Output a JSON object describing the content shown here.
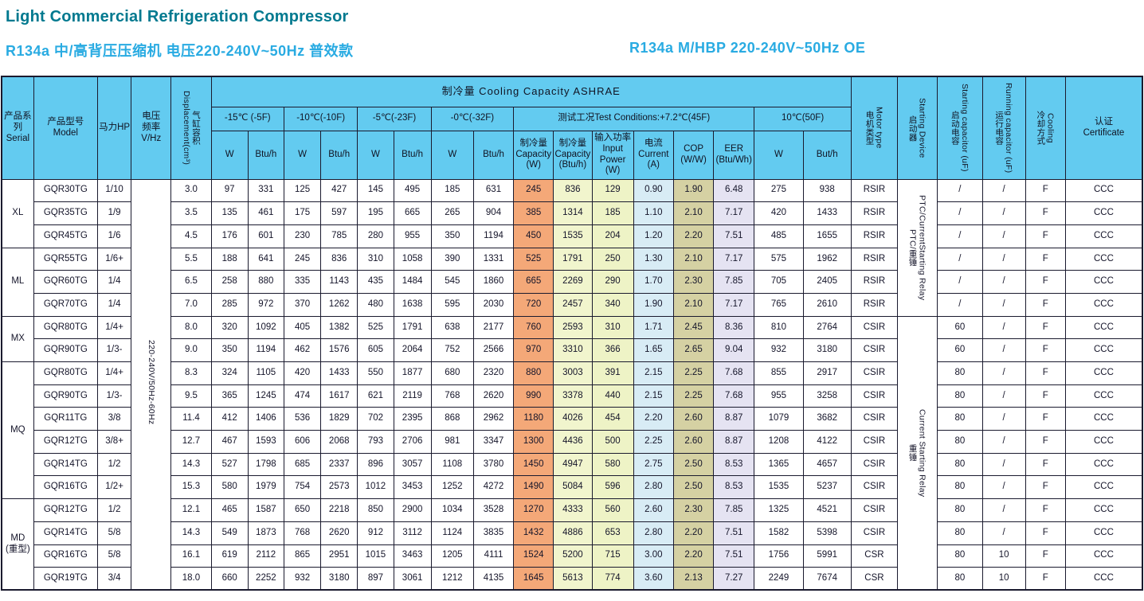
{
  "page": {
    "title": "Light Commercial Refrigeration Compressor",
    "subtitle_left": "R134a   中/高背压压缩机   电压220-240V~50Hz   普效款",
    "subtitle_right": "R134a   M/HBP   220-240V~50Hz   OE"
  },
  "colors": {
    "title": "#00798f",
    "subtitle": "#29abe2",
    "header_bg": "#63cbf0",
    "capacity_w": "#f4a878",
    "capacity_btu": "#f1f5cd",
    "input_power": "#eef3c6",
    "current": "#d8ecf5",
    "cop": "#d5d1a3",
    "eer": "#e5e3f2"
  },
  "table": {
    "header": {
      "serial": "产品系列\nSerial",
      "model": "产品型号\nModel",
      "hp": "马力HP",
      "vhz": "电压\n频率\nV/Hz",
      "displacement_en": "Displacement(cm³)",
      "displacement_zh": "气缸容积",
      "cooling_group": "制冷量   Cooling  Capacity  ASHRAE",
      "temp_cols": [
        "-15℃ (-5F)",
        "-10℃(-10F)",
        "-5℃(-23F)",
        "-0℃(-32F)",
        "测试工况Test Conditions:+7.2℃(45F)",
        "10℃(50F)"
      ],
      "sub_w": "W",
      "sub_btu": "Btu/h",
      "sub_but": "But/h",
      "test_cols": [
        "制冷量\nCapacity\n(W)",
        "制冷量\nCapacity\n(Btu/h)",
        "输入功率\nInput\nPower\n(W)",
        "电流\nCurrent\n(A)",
        "COP\n(W/W)",
        "EER\n(Btu/Wh)"
      ],
      "motor_zh": "电机类型",
      "motor_en": "Motor type",
      "start_dev_zh": "启动器",
      "start_dev_en": "Starting Device",
      "start_cap_zh": "启动电容",
      "start_cap_en": "Starting capacitor (uF)",
      "run_cap_zh": "运行电容",
      "run_cap_en": "Running capacitor (uF)",
      "cooling_zh": "冷却方式",
      "cooling_en": "Cooling",
      "cert": "认证\nCertificate"
    },
    "voltage": "220-240V/50Hz-60Hz",
    "groups": [
      {
        "name": "XL",
        "rows": 3
      },
      {
        "name": "ML",
        "rows": 3
      },
      {
        "name": "MX",
        "rows": 2
      },
      {
        "name": "MQ",
        "rows": 6
      },
      {
        "name": "MD\n(重型)",
        "rows": 4
      }
    ],
    "starting_device": [
      {
        "zh": "PTC/重锤",
        "en": "PTC/CurrentStarting Relay",
        "span": 6
      },
      {
        "zh": "重锤",
        "en": "Current Starting Relay",
        "span": 12
      }
    ],
    "rows": [
      {
        "model": "GQR30TG",
        "hp": "1/10",
        "disp": "3.0",
        "cooling": [
          "97",
          "331",
          "125",
          "427",
          "145",
          "495",
          "185",
          "631"
        ],
        "test": [
          "245",
          "836",
          "129",
          "0.90",
          "1.90",
          "6.48"
        ],
        "t50": [
          "275",
          "938"
        ],
        "motor": "RSIR",
        "start_cap": "/",
        "run_cap": "/",
        "cool": "F",
        "cert": "CCC"
      },
      {
        "model": "GQR35TG",
        "hp": "1/9",
        "disp": "3.5",
        "cooling": [
          "135",
          "461",
          "175",
          "597",
          "195",
          "665",
          "265",
          "904"
        ],
        "test": [
          "385",
          "1314",
          "185",
          "1.10",
          "2.10",
          "7.17"
        ],
        "t50": [
          "420",
          "1433"
        ],
        "motor": "RSIR",
        "start_cap": "/",
        "run_cap": "/",
        "cool": "F",
        "cert": "CCC"
      },
      {
        "model": "GQR45TG",
        "hp": "1/6",
        "disp": "4.5",
        "cooling": [
          "176",
          "601",
          "230",
          "785",
          "280",
          "955",
          "350",
          "1194"
        ],
        "test": [
          "450",
          "1535",
          "204",
          "1.20",
          "2.20",
          "7.51"
        ],
        "t50": [
          "485",
          "1655"
        ],
        "motor": "RSIR",
        "start_cap": "/",
        "run_cap": "/",
        "cool": "F",
        "cert": "CCC"
      },
      {
        "model": "GQR55TG",
        "hp": "1/6+",
        "disp": "5.5",
        "cooling": [
          "188",
          "641",
          "245",
          "836",
          "310",
          "1058",
          "390",
          "1331"
        ],
        "test": [
          "525",
          "1791",
          "250",
          "1.30",
          "2.10",
          "7.17"
        ],
        "t50": [
          "575",
          "1962"
        ],
        "motor": "RSIR",
        "start_cap": "/",
        "run_cap": "/",
        "cool": "F",
        "cert": "CCC"
      },
      {
        "model": "GQR60TG",
        "hp": "1/4",
        "disp": "6.5",
        "cooling": [
          "258",
          "880",
          "335",
          "1143",
          "435",
          "1484",
          "545",
          "1860"
        ],
        "test": [
          "665",
          "2269",
          "290",
          "1.70",
          "2.30",
          "7.85"
        ],
        "t50": [
          "705",
          "2405"
        ],
        "motor": "RSIR",
        "start_cap": "/",
        "run_cap": "/",
        "cool": "F",
        "cert": "CCC"
      },
      {
        "model": "GQR70TG",
        "hp": "1/4",
        "disp": "7.0",
        "cooling": [
          "285",
          "972",
          "370",
          "1262",
          "480",
          "1638",
          "595",
          "2030"
        ],
        "test": [
          "720",
          "2457",
          "340",
          "1.90",
          "2.10",
          "7.17"
        ],
        "t50": [
          "765",
          "2610"
        ],
        "motor": "RSIR",
        "start_cap": "/",
        "run_cap": "/",
        "cool": "F",
        "cert": "CCC"
      },
      {
        "model": "GQR80TG",
        "hp": "1/4+",
        "disp": "8.0",
        "cooling": [
          "320",
          "1092",
          "405",
          "1382",
          "525",
          "1791",
          "638",
          "2177"
        ],
        "test": [
          "760",
          "2593",
          "310",
          "1.71",
          "2.45",
          "8.36"
        ],
        "t50": [
          "810",
          "2764"
        ],
        "motor": "CSIR",
        "start_cap": "60",
        "run_cap": "/",
        "cool": "F",
        "cert": "CCC"
      },
      {
        "model": "GQR90TG",
        "hp": "1/3-",
        "disp": "9.0",
        "cooling": [
          "350",
          "1194",
          "462",
          "1576",
          "605",
          "2064",
          "752",
          "2566"
        ],
        "test": [
          "970",
          "3310",
          "366",
          "1.65",
          "2.65",
          "9.04"
        ],
        "t50": [
          "932",
          "3180"
        ],
        "motor": "CSIR",
        "start_cap": "60",
        "run_cap": "/",
        "cool": "F",
        "cert": "CCC"
      },
      {
        "model": "GQR80TG",
        "hp": "1/4+",
        "disp": "8.3",
        "cooling": [
          "324",
          "1105",
          "420",
          "1433",
          "550",
          "1877",
          "680",
          "2320"
        ],
        "test": [
          "880",
          "3003",
          "391",
          "2.15",
          "2.25",
          "7.68"
        ],
        "t50": [
          "855",
          "2917"
        ],
        "motor": "CSIR",
        "start_cap": "80",
        "run_cap": "/",
        "cool": "F",
        "cert": "CCC"
      },
      {
        "model": "GQR90TG",
        "hp": "1/3-",
        "disp": "9.5",
        "cooling": [
          "365",
          "1245",
          "474",
          "1617",
          "621",
          "2119",
          "768",
          "2620"
        ],
        "test": [
          "990",
          "3378",
          "440",
          "2.15",
          "2.25",
          "7.68"
        ],
        "t50": [
          "955",
          "3258"
        ],
        "motor": "CSIR",
        "start_cap": "80",
        "run_cap": "/",
        "cool": "F",
        "cert": "CCC"
      },
      {
        "model": "GQR11TG",
        "hp": "3/8",
        "disp": "11.4",
        "cooling": [
          "412",
          "1406",
          "536",
          "1829",
          "702",
          "2395",
          "868",
          "2962"
        ],
        "test": [
          "1180",
          "4026",
          "454",
          "2.20",
          "2.60",
          "8.87"
        ],
        "t50": [
          "1079",
          "3682"
        ],
        "motor": "CSIR",
        "start_cap": "80",
        "run_cap": "/",
        "cool": "F",
        "cert": "CCC"
      },
      {
        "model": "GQR12TG",
        "hp": "3/8+",
        "disp": "12.7",
        "cooling": [
          "467",
          "1593",
          "606",
          "2068",
          "793",
          "2706",
          "981",
          "3347"
        ],
        "test": [
          "1300",
          "4436",
          "500",
          "2.25",
          "2.60",
          "8.87"
        ],
        "t50": [
          "1208",
          "4122"
        ],
        "motor": "CSIR",
        "start_cap": "80",
        "run_cap": "/",
        "cool": "F",
        "cert": "CCC"
      },
      {
        "model": "GQR14TG",
        "hp": "1/2",
        "disp": "14.3",
        "cooling": [
          "527",
          "1798",
          "685",
          "2337",
          "896",
          "3057",
          "1108",
          "3780"
        ],
        "test": [
          "1450",
          "4947",
          "580",
          "2.75",
          "2.50",
          "8.53"
        ],
        "t50": [
          "1365",
          "4657"
        ],
        "motor": "CSIR",
        "start_cap": "80",
        "run_cap": "/",
        "cool": "F",
        "cert": "CCC"
      },
      {
        "model": "GQR16TG",
        "hp": "1/2+",
        "disp": "15.3",
        "cooling": [
          "580",
          "1979",
          "754",
          "2573",
          "1012",
          "3453",
          "1252",
          "4272"
        ],
        "test": [
          "1490",
          "5084",
          "596",
          "2.80",
          "2.50",
          "8.53"
        ],
        "t50": [
          "1535",
          "5237"
        ],
        "motor": "CSIR",
        "start_cap": "80",
        "run_cap": "/",
        "cool": "F",
        "cert": "CCC"
      },
      {
        "model": "GQR12TG",
        "hp": "1/2",
        "disp": "12.1",
        "cooling": [
          "465",
          "1587",
          "650",
          "2218",
          "850",
          "2900",
          "1034",
          "3528"
        ],
        "test": [
          "1270",
          "4333",
          "560",
          "2.60",
          "2.30",
          "7.85"
        ],
        "t50": [
          "1325",
          "4521"
        ],
        "motor": "CSIR",
        "start_cap": "80",
        "run_cap": "/",
        "cool": "F",
        "cert": "CCC"
      },
      {
        "model": "GQR14TG",
        "hp": "5/8",
        "disp": "14.3",
        "cooling": [
          "549",
          "1873",
          "768",
          "2620",
          "912",
          "3112",
          "1124",
          "3835"
        ],
        "test": [
          "1432",
          "4886",
          "653",
          "2.80",
          "2.20",
          "7.51"
        ],
        "t50": [
          "1582",
          "5398"
        ],
        "motor": "CSIR",
        "start_cap": "80",
        "run_cap": "/",
        "cool": "F",
        "cert": "CCC"
      },
      {
        "model": "GQR16TG",
        "hp": "5/8",
        "disp": "16.1",
        "cooling": [
          "619",
          "2112",
          "865",
          "2951",
          "1015",
          "3463",
          "1205",
          "4111"
        ],
        "test": [
          "1524",
          "5200",
          "715",
          "3.00",
          "2.20",
          "7.51"
        ],
        "t50": [
          "1756",
          "5991"
        ],
        "motor": "CSR",
        "start_cap": "80",
        "run_cap": "10",
        "cool": "F",
        "cert": "CCC"
      },
      {
        "model": "GQR19TG",
        "hp": "3/4",
        "disp": "18.0",
        "cooling": [
          "660",
          "2252",
          "932",
          "3180",
          "897",
          "3061",
          "1212",
          "4135"
        ],
        "test": [
          "1645",
          "5613",
          "774",
          "3.60",
          "2.13",
          "7.27"
        ],
        "t50": [
          "2249",
          "7674"
        ],
        "motor": "CSR",
        "start_cap": "80",
        "run_cap": "10",
        "cool": "F",
        "cert": "CCC"
      }
    ]
  }
}
